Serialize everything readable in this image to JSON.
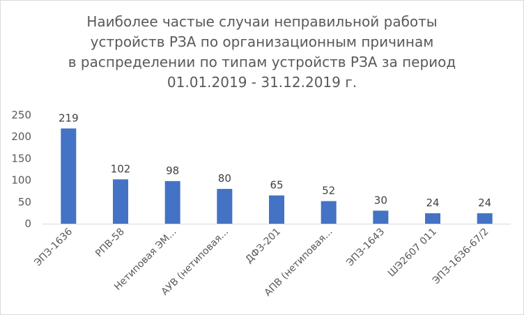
{
  "chart_data": {
    "type": "bar",
    "title_lines": [
      "Наиболее частые случаи неправильной работы",
      "устройств РЗА по организационным причинам",
      "в распределении по  типам устройств РЗА за период",
      "01.01.2019 - 31.12.2019 г."
    ],
    "categories": [
      "ЭПЗ-1636",
      "РПВ-58",
      "Нетиповая ЭМ...",
      "АУВ (нетиповая...",
      "ДФЗ-201",
      "АПВ (нетиповая...",
      "ЭПЗ-1643",
      "ШЭ2607 011",
      "ЭПЗ-1636-67/2"
    ],
    "values": [
      219,
      102,
      98,
      80,
      65,
      52,
      30,
      24,
      24
    ],
    "ylim": [
      0,
      250
    ],
    "yticks": [
      0,
      50,
      100,
      150,
      200,
      250
    ],
    "grid": false,
    "bar_color": "#4472c4",
    "axis_color": "#d9d9d9"
  }
}
